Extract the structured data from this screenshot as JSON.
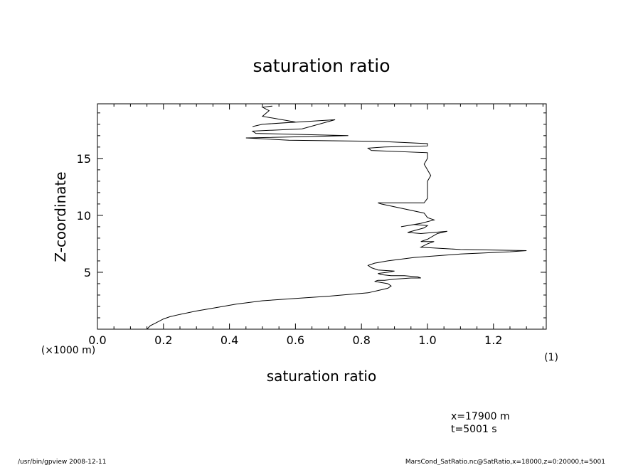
{
  "chart_data": {
    "type": "line",
    "title": "saturation ratio",
    "xlabel": "saturation ratio",
    "xunit": "(1)",
    "ylabel": "Z-coordinate",
    "yunit": "(×1000 m)",
    "xlim": [
      0.0,
      1.36
    ],
    "ylim": [
      0,
      19.8
    ],
    "xticks": [
      "0.0",
      "0.2",
      "0.4",
      "0.6",
      "0.8",
      "1.0",
      "1.2"
    ],
    "yticks": [
      "5",
      "10",
      "15"
    ],
    "grid": false,
    "series": [
      {
        "x": [
          0.15,
          0.16,
          0.18,
          0.2,
          0.22,
          0.25,
          0.3,
          0.36,
          0.42,
          0.5,
          0.6,
          0.7,
          0.78,
          0.82,
          0.85,
          0.88,
          0.89,
          0.88,
          0.86,
          0.84,
          0.85,
          0.87,
          0.9,
          0.95,
          0.98,
          0.97,
          0.93,
          0.89,
          0.86,
          0.85,
          0.88,
          0.9,
          0.85,
          0.83,
          0.82,
          0.84,
          0.88,
          0.96,
          1.1,
          1.25,
          1.3,
          1.1,
          0.98,
          1.0,
          1.02,
          0.98,
          1.0,
          1.03,
          1.06,
          0.98,
          0.94,
          0.99,
          1.0,
          0.96,
          0.92,
          0.98,
          1.02,
          1.0,
          0.99,
          0.86,
          0.85,
          0.99,
          1.0,
          1.0,
          1.0,
          1.0,
          1.01,
          1.0,
          0.99,
          1.0,
          1.0,
          0.83,
          0.82,
          0.87,
          1.0,
          1.0,
          0.85,
          0.58,
          0.45,
          0.76,
          0.48,
          0.47,
          0.62,
          0.72,
          0.5,
          0.47,
          0.5,
          0.6,
          0.5,
          0.52,
          0.5,
          0.53
        ],
        "y": [
          0.0,
          0.3,
          0.6,
          0.9,
          1.1,
          1.3,
          1.6,
          1.9,
          2.2,
          2.5,
          2.7,
          2.9,
          3.1,
          3.2,
          3.4,
          3.6,
          3.8,
          4.0,
          4.1,
          4.2,
          4.3,
          4.3,
          4.4,
          4.5,
          4.5,
          4.6,
          4.7,
          4.7,
          4.8,
          4.9,
          5.0,
          5.1,
          5.2,
          5.4,
          5.6,
          5.8,
          6.0,
          6.3,
          6.6,
          6.8,
          6.9,
          7.0,
          7.2,
          7.5,
          7.7,
          7.7,
          7.9,
          8.4,
          8.6,
          8.4,
          8.5,
          8.9,
          9.1,
          9.2,
          9.0,
          9.3,
          9.6,
          9.8,
          10.2,
          11.0,
          11.1,
          11.1,
          11.5,
          12.0,
          12.5,
          13.0,
          13.5,
          14.0,
          14.5,
          15.0,
          15.5,
          15.7,
          15.9,
          16.0,
          16.1,
          16.3,
          16.5,
          16.6,
          16.8,
          17.0,
          17.2,
          17.4,
          17.6,
          18.4,
          18.0,
          17.8,
          18.0,
          18.2,
          18.7,
          19.2,
          19.5,
          19.6
        ]
      }
    ]
  },
  "annotations": {
    "info_line1": "x=17900  m",
    "info_line2": "t=5001  s"
  },
  "footer": {
    "left": "/usr/bin/gpview   2008-12-11",
    "right": "MarsCond_SatRatio.nc@SatRatio,x=18000,z=0:20000,t=5001"
  }
}
